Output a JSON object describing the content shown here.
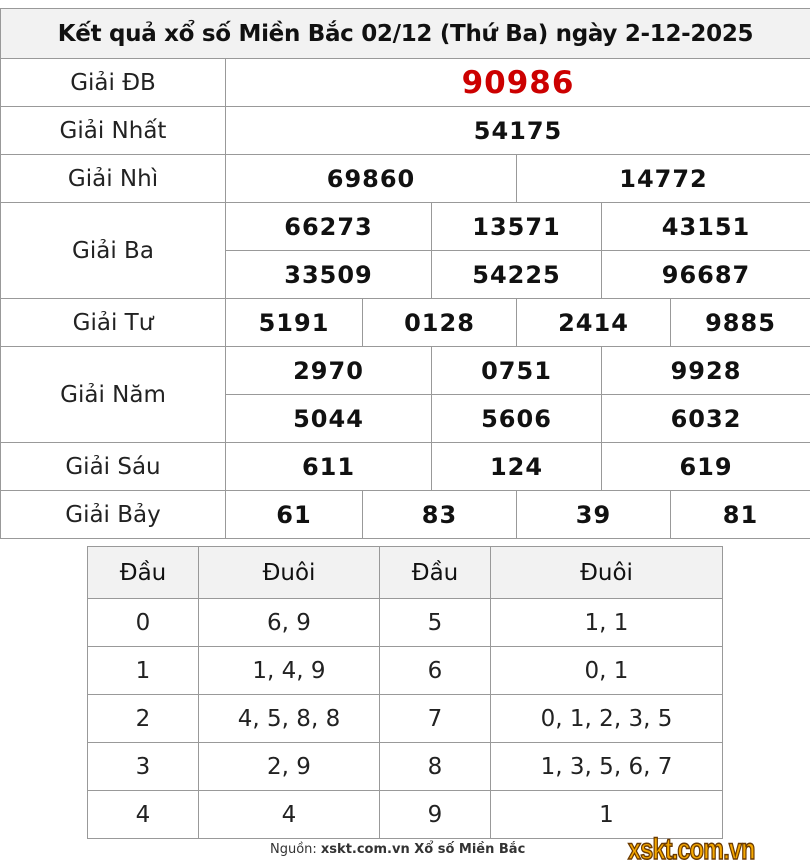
{
  "title": "Kết quả xổ số Miền Bắc 02/12 (Thứ Ba) ngày 2-12-2025",
  "prizes": {
    "db": {
      "label": "Giải ĐB",
      "values": [
        "90986"
      ]
    },
    "nhat": {
      "label": "Giải Nhất",
      "values": [
        "54175"
      ]
    },
    "nhi": {
      "label": "Giải Nhì",
      "values": [
        "69860",
        "14772"
      ]
    },
    "ba": {
      "label": "Giải Ba",
      "values": [
        "66273",
        "13571",
        "43151",
        "33509",
        "54225",
        "96687"
      ]
    },
    "tu": {
      "label": "Giải Tư",
      "values": [
        "5191",
        "0128",
        "2414",
        "9885"
      ]
    },
    "nam": {
      "label": "Giải Năm",
      "values": [
        "2970",
        "0751",
        "9928",
        "5044",
        "5606",
        "6032"
      ]
    },
    "sau": {
      "label": "Giải Sáu",
      "values": [
        "611",
        "124",
        "619"
      ]
    },
    "bay": {
      "label": "Giải Bảy",
      "values": [
        "61",
        "83",
        "39",
        "81"
      ]
    }
  },
  "loto": {
    "headers": [
      "Đầu",
      "Đuôi",
      "Đầu",
      "Đuôi"
    ],
    "rows": [
      [
        "0",
        "6, 9",
        "5",
        "1, 1"
      ],
      [
        "1",
        "1, 4, 9",
        "6",
        "0, 1"
      ],
      [
        "2",
        "4, 5, 8, 8",
        "7",
        "0, 1, 2, 3, 5"
      ],
      [
        "3",
        "2, 9",
        "8",
        "1, 3, 5, 6, 7"
      ],
      [
        "4",
        "4",
        "9",
        "1"
      ]
    ]
  },
  "footer": {
    "prefix": "Nguồn: ",
    "site": "xskt.com.vn Xổ số Miền Bắc",
    "logo": "xskt.com.vn"
  },
  "colors": {
    "special_prize": "#cc0000",
    "header_bg": "#f2f2f2"
  }
}
